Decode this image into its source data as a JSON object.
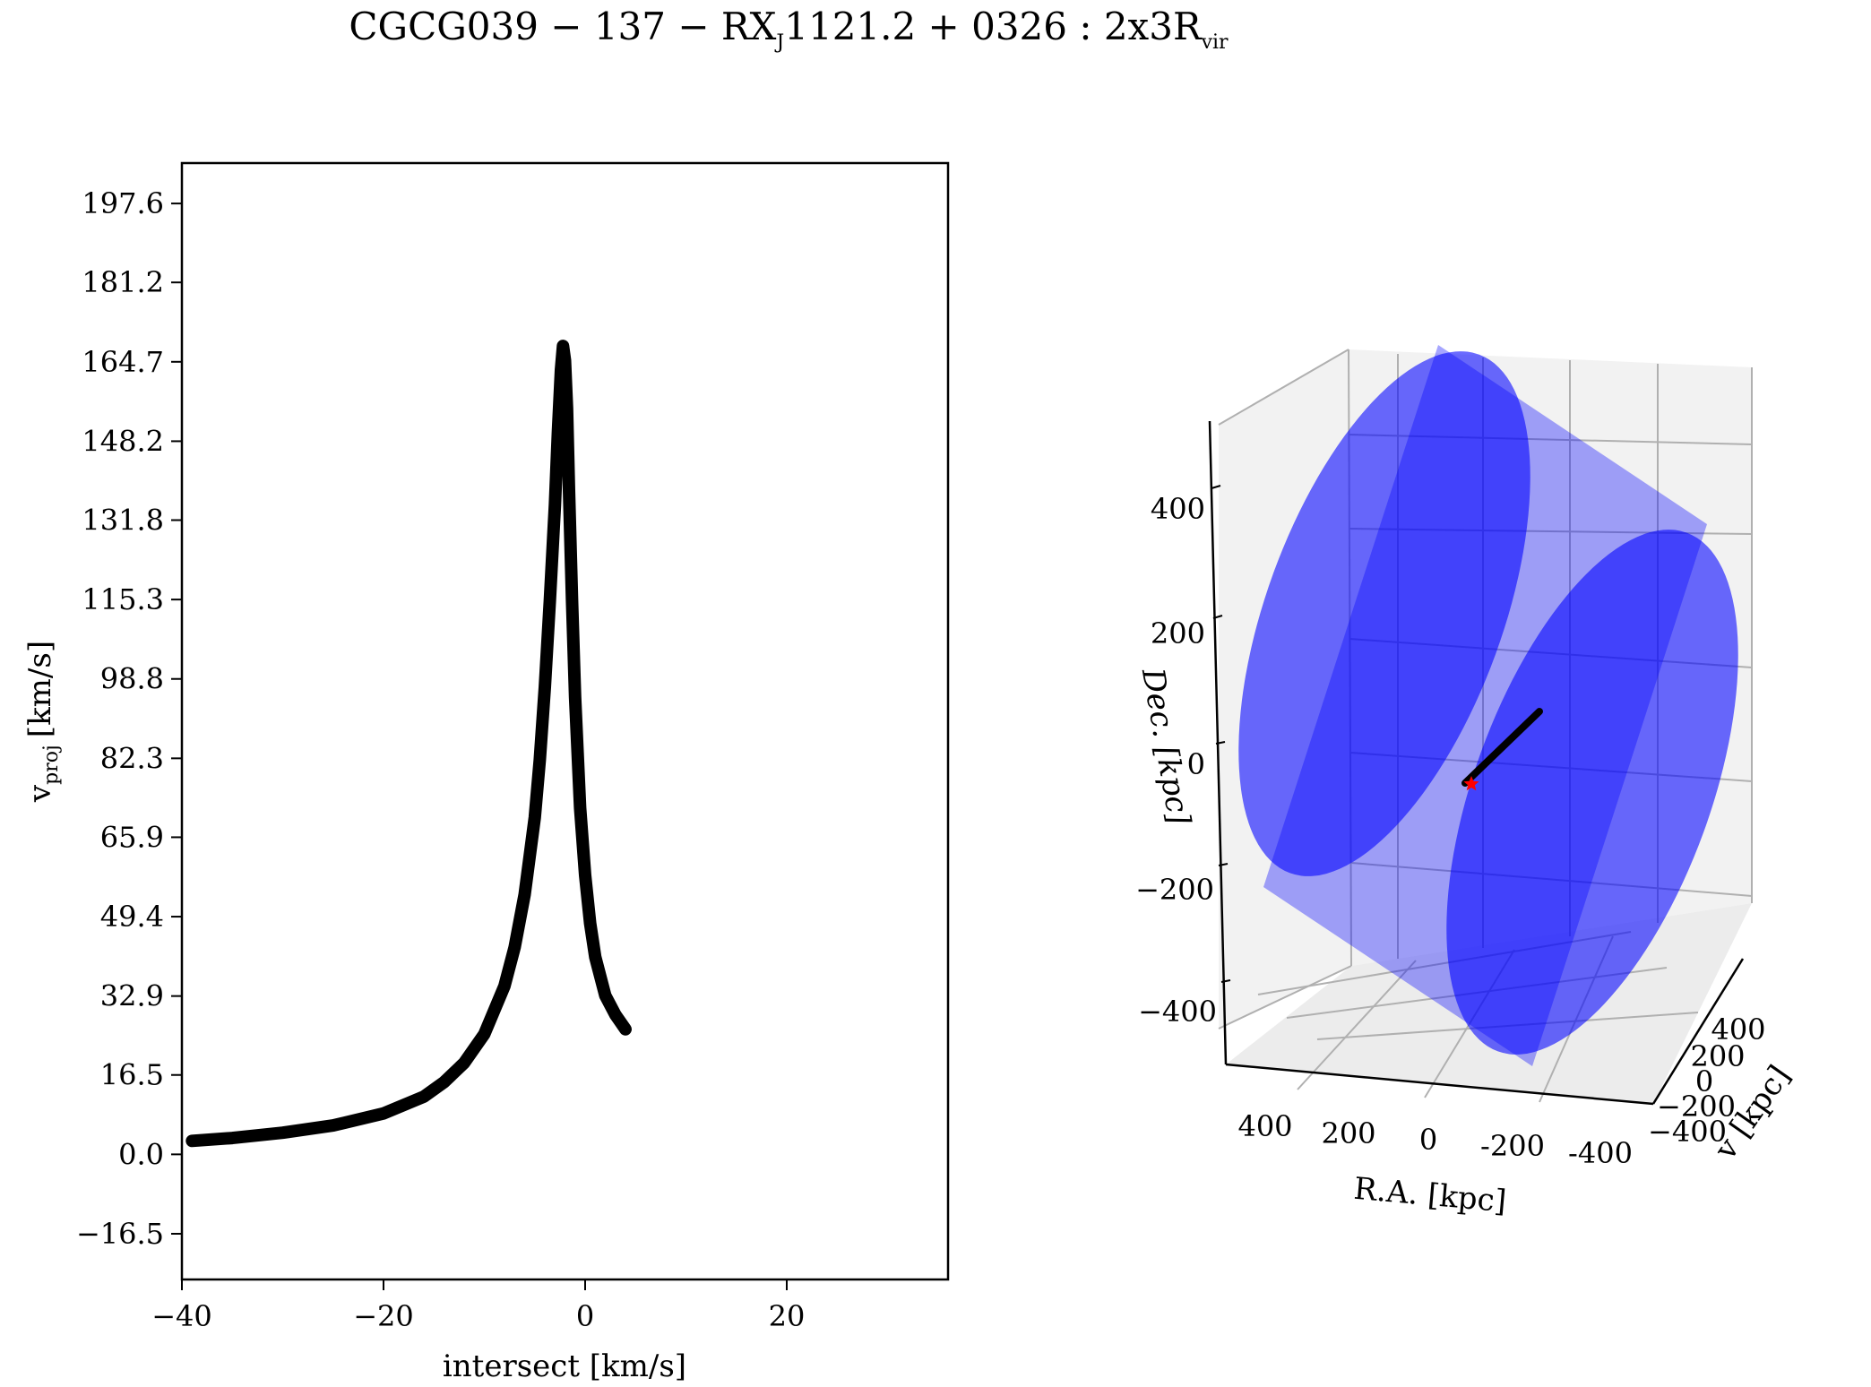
{
  "figure": {
    "title": {
      "part1": "CGCG039 − 137 − RX",
      "sub1": "J",
      "part2": "1121.2 + 0326 :  2x3R",
      "sub2": "vir"
    }
  },
  "colors": {
    "curve": "#000000",
    "surface": "#0000ff",
    "star": "#ff0000",
    "pane": "#f2f2f2",
    "grid": "#b0b0b0"
  },
  "chart_data": [
    {
      "type": "scatter",
      "xlabel": "intersect [km/s]",
      "ylabel_main": "v",
      "ylabel_sub": "proj",
      "ylabel_unit": "[km/s]",
      "xlim": [
        -40,
        36
      ],
      "ylim": [
        -26,
        206
      ],
      "xticks": [
        -40,
        -20,
        0,
        20
      ],
      "xtick_labels": [
        "−40",
        "−20",
        "0",
        "20"
      ],
      "yticks": [
        -16.5,
        0.0,
        16.5,
        32.9,
        49.4,
        65.9,
        82.3,
        98.8,
        115.3,
        131.8,
        148.2,
        164.7,
        181.2,
        197.6
      ],
      "ytick_labels": [
        "−16.5",
        "0.0",
        "16.5",
        "32.9",
        "49.4",
        "65.9",
        "82.3",
        "98.8",
        "115.3",
        "131.8",
        "148.2",
        "164.7",
        "181.2",
        "197.6"
      ],
      "grid": false,
      "legend": null,
      "series": [
        {
          "x": [
            -39,
            -35,
            -30,
            -25,
            -20,
            -16,
            -14,
            -12,
            -10,
            -8,
            -7,
            -6,
            -5,
            -4.5,
            -4,
            -3.5,
            -3,
            -2.7,
            -2.4,
            -2.2,
            -2.0,
            -1.8,
            -1.6,
            -1.3,
            -1.0,
            -0.5,
            0,
            0.5,
            1,
            2,
            3,
            4
          ],
          "y": [
            2.8,
            3.4,
            4.5,
            6.0,
            8.5,
            12.0,
            15.0,
            19.0,
            25.0,
            35.0,
            43.0,
            54.0,
            70.0,
            82.0,
            97.0,
            115.0,
            135.0,
            150.0,
            163.0,
            168.0,
            165.0,
            155.0,
            138.0,
            115.0,
            95.0,
            72.0,
            58.0,
            48.0,
            41.0,
            33.0,
            29.0,
            26.0
          ]
        }
      ]
    },
    {
      "type": "3d-surface",
      "xlabel": "R.A. [kpc]",
      "ylabel": "Dec. [kpc]",
      "zlabel": "v [kpc]",
      "ra_ticks": [
        "400",
        "200",
        "0",
        "-200",
        "-400"
      ],
      "dec_ticks": [
        "400",
        "200",
        "0",
        "−200",
        "−400"
      ],
      "v_ticks": [
        "400",
        "200",
        "0",
        "−200",
        "−400"
      ],
      "grid": true
    }
  ]
}
